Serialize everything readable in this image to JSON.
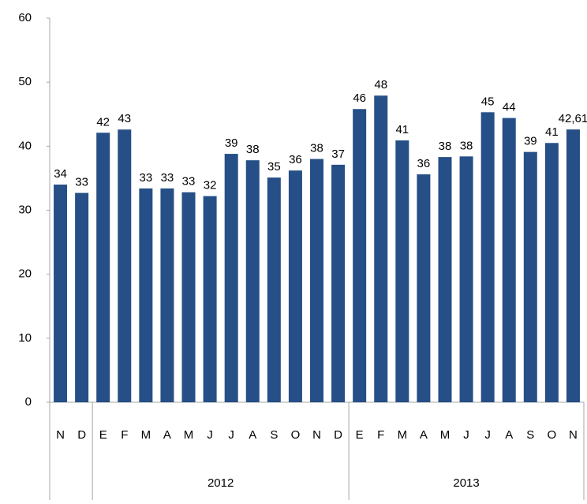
{
  "chart_data": {
    "type": "bar",
    "categories": [
      "N",
      "D",
      "E",
      "F",
      "M",
      "A",
      "M",
      "J",
      "J",
      "A",
      "S",
      "O",
      "N",
      "D",
      "E",
      "F",
      "M",
      "A",
      "M",
      "J",
      "J",
      "A",
      "S",
      "O",
      "N"
    ],
    "values": [
      34,
      32.7,
      42.1,
      42.6,
      33.4,
      33.4,
      32.8,
      32.2,
      38.8,
      37.8,
      35.1,
      36.2,
      38,
      37.1,
      45.8,
      47.9,
      40.9,
      35.6,
      38.3,
      38.4,
      45.3,
      44.4,
      39.1,
      40.5,
      42.61
    ],
    "value_labels": [
      "34",
      "33",
      "42",
      "43",
      "33",
      "33",
      "33",
      "32",
      "39",
      "38",
      "35",
      "36",
      "38",
      "37",
      "46",
      "48",
      "41",
      "36",
      "38",
      "38",
      "45",
      "44",
      "39",
      "41",
      "42,61"
    ],
    "x_groups": [
      null,
      "2012",
      "2013"
    ],
    "group_sizes": [
      2,
      12,
      11
    ],
    "color": "#254f86",
    "ylim": [
      0,
      60
    ],
    "yticks": [
      0,
      10,
      20,
      30,
      40,
      50,
      60
    ],
    "grid": false
  }
}
